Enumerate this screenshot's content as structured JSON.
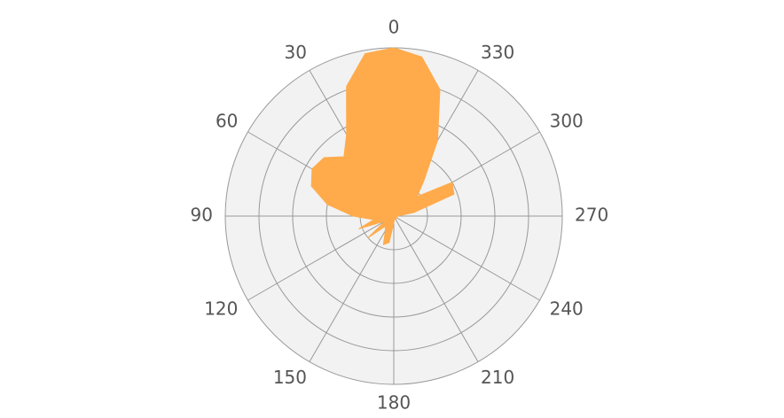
{
  "chart_data": {
    "type": "polar",
    "theta": [
      0,
      10,
      20,
      30,
      40,
      50,
      60,
      70,
      80,
      90,
      100,
      110,
      120,
      130,
      140,
      150,
      160,
      170,
      180,
      190,
      200,
      210,
      220,
      230,
      240,
      250,
      260,
      270,
      280,
      290,
      300,
      310,
      320,
      330,
      340,
      350
    ],
    "values": [
      5.0,
      4.9,
      4.1,
      2.8,
      2.3,
      2.7,
      2.8,
      2.6,
      2.0,
      1.2,
      0.6,
      1.1,
      0.3,
      1.0,
      0.4,
      0.5,
      0.9,
      0.8,
      0.2,
      0.1,
      0.1,
      0.1,
      0.1,
      0.1,
      0.1,
      0.1,
      0.1,
      0.1,
      0.6,
      1.9,
      2.0,
      0.9,
      1.4,
      2.6,
      4.0,
      4.8
    ],
    "color": "#ffab4c",
    "rlim": [
      0,
      5
    ],
    "rticks": [
      1,
      2,
      3,
      4
    ],
    "angular_ticks": [
      0,
      30,
      60,
      90,
      120,
      150,
      180,
      210,
      240,
      270,
      300,
      330
    ],
    "angular_direction": "counterclockwise",
    "rotation": 90,
    "grid": true
  }
}
